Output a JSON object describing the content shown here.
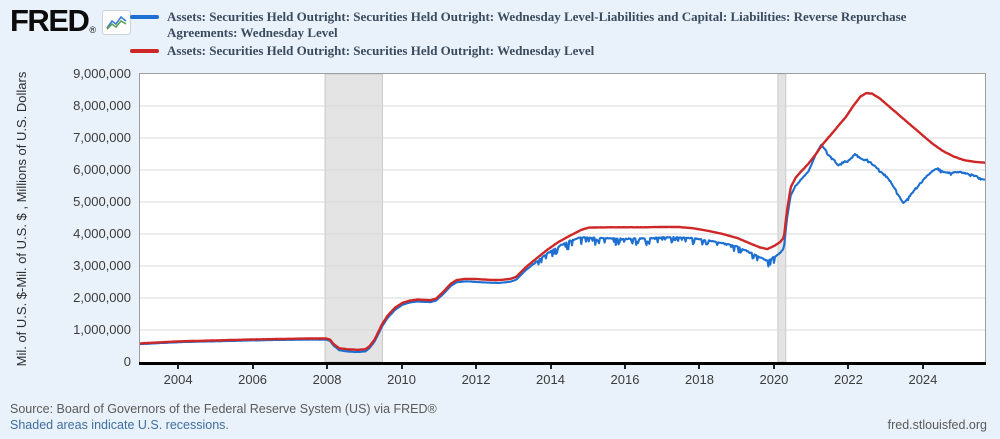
{
  "header": {
    "logo_text": "FRED",
    "logo_reg": "®",
    "legend": [
      {
        "color": "#1d6fd1",
        "line1": "Assets: Securities Held Outright: Securities Held Outright: Wednesday Level-Liabilities and Capital: Liabilities: Reverse Repurchase",
        "line2": "Agreements: Wednesday Level"
      },
      {
        "color": "#ce2727",
        "line1": "Assets: Securities Held Outright: Securities Held Outright: Wednesday Level",
        "line2": ""
      }
    ]
  },
  "footer": {
    "source": "Source: Board of Governors of the Federal Reserve System (US) via FRED®",
    "shaded_note": "Shaded areas indicate U.S. recessions.",
    "site": "fred.stlouisfed.org"
  },
  "chart_data": {
    "type": "line",
    "y_axis_title": "Mil. of U.S. $-Mil. of U.S. $ , Millions of U.S. Dollars",
    "x_range": [
      2002.95,
      2025.64
    ],
    "y_range": [
      0,
      9000000
    ],
    "y_tick_step": 1000000,
    "x_ticks": [
      2004,
      2006,
      2008,
      2010,
      2012,
      2014,
      2016,
      2018,
      2020,
      2022,
      2024
    ],
    "grid": "horizontal-only",
    "legend_position": "top",
    "recessions": [
      {
        "start": 2007.92,
        "end": 2009.46
      },
      {
        "start": 2020.08,
        "end": 2020.29
      }
    ],
    "recession_fill": "#e4e4e4",
    "recession_edge": "#c8c8c8",
    "series": [
      {
        "name": "Assets: Securities Held Outright: Securities Held Outright: Wednesday Level-Liabilities and Capital: Liabilities: Reverse Repurchase Agreements: Wednesday Level",
        "color": "#1d6fd1",
        "stroke_width": 2.1,
        "noise": [
          {
            "from": 2002.9,
            "to": 2013.5,
            "amp": 5000,
            "bias": 0
          },
          {
            "from": 2013.5,
            "to": 2020.1,
            "amp": 28000,
            "bias": -8
          },
          {
            "from": 2020.1,
            "to": 2021.3,
            "amp": 22000,
            "bias": 0
          },
          {
            "from": 2021.3,
            "to": 2025.7,
            "amp": 45000,
            "bias": -1.2
          }
        ],
        "points": [
          [
            2002.95,
            558000
          ],
          [
            2003.5,
            592000
          ],
          [
            2004.0,
            620000
          ],
          [
            2004.5,
            635000
          ],
          [
            2005.0,
            648000
          ],
          [
            2005.5,
            662000
          ],
          [
            2006.0,
            676000
          ],
          [
            2006.5,
            685000
          ],
          [
            2007.0,
            694000
          ],
          [
            2007.5,
            700000
          ],
          [
            2007.95,
            698000
          ],
          [
            2008.05,
            660000
          ],
          [
            2008.15,
            510000
          ],
          [
            2008.3,
            370000
          ],
          [
            2008.5,
            330000
          ],
          [
            2008.8,
            310000
          ],
          [
            2009.0,
            330000
          ],
          [
            2009.1,
            420000
          ],
          [
            2009.25,
            640000
          ],
          [
            2009.45,
            1110000
          ],
          [
            2009.6,
            1380000
          ],
          [
            2009.8,
            1630000
          ],
          [
            2010.0,
            1790000
          ],
          [
            2010.2,
            1860000
          ],
          [
            2010.4,
            1890000
          ],
          [
            2010.75,
            1870000
          ],
          [
            2010.9,
            1920000
          ],
          [
            2011.1,
            2130000
          ],
          [
            2011.3,
            2380000
          ],
          [
            2011.45,
            2490000
          ],
          [
            2011.7,
            2520000
          ],
          [
            2012.0,
            2500000
          ],
          [
            2012.3,
            2480000
          ],
          [
            2012.6,
            2470000
          ],
          [
            2012.9,
            2510000
          ],
          [
            2013.05,
            2570000
          ],
          [
            2013.3,
            2860000
          ],
          [
            2013.6,
            3140000
          ],
          [
            2013.9,
            3400000
          ],
          [
            2014.2,
            3620000
          ],
          [
            2014.5,
            3790000
          ],
          [
            2014.8,
            3900000
          ],
          [
            2015.0,
            3880000
          ],
          [
            2015.5,
            3870000
          ],
          [
            2016.0,
            3850000
          ],
          [
            2016.5,
            3860000
          ],
          [
            2017.0,
            3890000
          ],
          [
            2017.4,
            3900000
          ],
          [
            2017.8,
            3870000
          ],
          [
            2018.2,
            3800000
          ],
          [
            2018.6,
            3710000
          ],
          [
            2019.0,
            3600000
          ],
          [
            2019.3,
            3440000
          ],
          [
            2019.6,
            3270000
          ],
          [
            2019.8,
            3160000
          ],
          [
            2020.0,
            3300000
          ],
          [
            2020.15,
            3420000
          ],
          [
            2020.24,
            3560000
          ],
          [
            2020.32,
            4450000
          ],
          [
            2020.42,
            5200000
          ],
          [
            2020.55,
            5500000
          ],
          [
            2020.7,
            5700000
          ],
          [
            2020.9,
            5950000
          ],
          [
            2021.1,
            6500000
          ],
          [
            2021.25,
            6800000
          ],
          [
            2021.4,
            6550000
          ],
          [
            2021.55,
            6350000
          ],
          [
            2021.7,
            6150000
          ],
          [
            2021.85,
            6250000
          ],
          [
            2022.0,
            6300000
          ],
          [
            2022.15,
            6500000
          ],
          [
            2022.3,
            6350000
          ],
          [
            2022.5,
            6300000
          ],
          [
            2022.7,
            6100000
          ],
          [
            2022.9,
            5900000
          ],
          [
            2023.1,
            5650000
          ],
          [
            2023.3,
            5250000
          ],
          [
            2023.45,
            4950000
          ],
          [
            2023.6,
            5150000
          ],
          [
            2023.8,
            5450000
          ],
          [
            2024.0,
            5700000
          ],
          [
            2024.2,
            5950000
          ],
          [
            2024.35,
            6050000
          ],
          [
            2024.5,
            5950000
          ],
          [
            2024.7,
            5900000
          ],
          [
            2024.9,
            5950000
          ],
          [
            2025.1,
            5900000
          ],
          [
            2025.3,
            5850000
          ],
          [
            2025.5,
            5750000
          ],
          [
            2025.64,
            5700000
          ]
        ]
      },
      {
        "name": "Assets: Securities Held Outright: Securities Held Outright: Wednesday Level",
        "color": "#ce2727",
        "stroke_width": 2.4,
        "noise": [
          {
            "from": 2002.9,
            "to": 2020.1,
            "amp": 3000,
            "bias": 0
          },
          {
            "from": 2020.1,
            "to": 2025.7,
            "amp": 9000,
            "bias": 0
          }
        ],
        "points": [
          [
            2002.95,
            580000
          ],
          [
            2003.5,
            615000
          ],
          [
            2004.0,
            645000
          ],
          [
            2004.5,
            660000
          ],
          [
            2005.0,
            675000
          ],
          [
            2005.5,
            690000
          ],
          [
            2006.0,
            705000
          ],
          [
            2006.5,
            715000
          ],
          [
            2007.0,
            725000
          ],
          [
            2007.5,
            735000
          ],
          [
            2007.95,
            735000
          ],
          [
            2008.05,
            700000
          ],
          [
            2008.15,
            560000
          ],
          [
            2008.3,
            430000
          ],
          [
            2008.5,
            400000
          ],
          [
            2008.8,
            380000
          ],
          [
            2009.0,
            400000
          ],
          [
            2009.1,
            480000
          ],
          [
            2009.25,
            700000
          ],
          [
            2009.45,
            1180000
          ],
          [
            2009.6,
            1450000
          ],
          [
            2009.8,
            1700000
          ],
          [
            2010.0,
            1850000
          ],
          [
            2010.2,
            1920000
          ],
          [
            2010.4,
            1950000
          ],
          [
            2010.75,
            1930000
          ],
          [
            2010.9,
            1980000
          ],
          [
            2011.1,
            2200000
          ],
          [
            2011.3,
            2450000
          ],
          [
            2011.45,
            2560000
          ],
          [
            2011.7,
            2600000
          ],
          [
            2012.0,
            2590000
          ],
          [
            2012.3,
            2570000
          ],
          [
            2012.6,
            2560000
          ],
          [
            2012.9,
            2600000
          ],
          [
            2013.05,
            2660000
          ],
          [
            2013.3,
            2950000
          ],
          [
            2013.6,
            3240000
          ],
          [
            2013.9,
            3520000
          ],
          [
            2014.2,
            3760000
          ],
          [
            2014.5,
            3950000
          ],
          [
            2014.8,
            4130000
          ],
          [
            2015.0,
            4200000
          ],
          [
            2015.5,
            4210000
          ],
          [
            2016.0,
            4210000
          ],
          [
            2016.5,
            4210000
          ],
          [
            2017.0,
            4220000
          ],
          [
            2017.4,
            4220000
          ],
          [
            2017.8,
            4180000
          ],
          [
            2018.2,
            4100000
          ],
          [
            2018.6,
            4000000
          ],
          [
            2019.0,
            3870000
          ],
          [
            2019.3,
            3720000
          ],
          [
            2019.6,
            3580000
          ],
          [
            2019.8,
            3530000
          ],
          [
            2020.0,
            3640000
          ],
          [
            2020.15,
            3760000
          ],
          [
            2020.24,
            3900000
          ],
          [
            2020.32,
            4700000
          ],
          [
            2020.42,
            5450000
          ],
          [
            2020.55,
            5750000
          ],
          [
            2020.7,
            5950000
          ],
          [
            2020.9,
            6200000
          ],
          [
            2021.1,
            6500000
          ],
          [
            2021.3,
            6830000
          ],
          [
            2021.5,
            7100000
          ],
          [
            2021.7,
            7380000
          ],
          [
            2021.9,
            7650000
          ],
          [
            2022.1,
            8000000
          ],
          [
            2022.3,
            8300000
          ],
          [
            2022.45,
            8400000
          ],
          [
            2022.6,
            8390000
          ],
          [
            2022.8,
            8250000
          ],
          [
            2023.0,
            8050000
          ],
          [
            2023.3,
            7750000
          ],
          [
            2023.6,
            7450000
          ],
          [
            2023.9,
            7150000
          ],
          [
            2024.2,
            6850000
          ],
          [
            2024.5,
            6600000
          ],
          [
            2024.8,
            6420000
          ],
          [
            2025.1,
            6300000
          ],
          [
            2025.4,
            6250000
          ],
          [
            2025.64,
            6230000
          ]
        ]
      }
    ]
  }
}
